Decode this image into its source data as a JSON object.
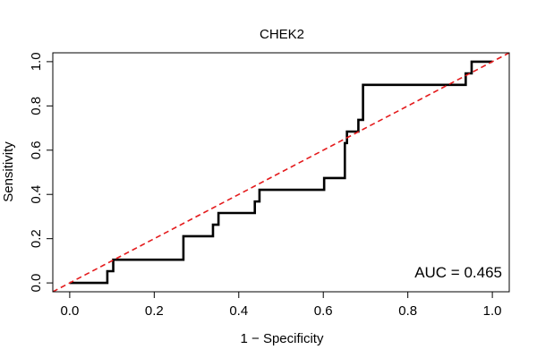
{
  "chart_data": {
    "type": "line",
    "title": "CHEK2",
    "xlabel": "1 − Specificity",
    "ylabel": "Sensitivity",
    "xlim": [
      -0.04,
      1.04
    ],
    "ylim": [
      -0.04,
      1.04
    ],
    "x_ticks": [
      0.0,
      0.2,
      0.4,
      0.6,
      0.8,
      1.0
    ],
    "x_tick_labels": [
      "0.0",
      "0.2",
      "0.4",
      "0.6",
      "0.8",
      "1.0"
    ],
    "y_ticks": [
      0.0,
      0.2,
      0.4,
      0.6,
      0.8,
      1.0
    ],
    "y_tick_labels": [
      "0.0",
      "0.2",
      "0.4",
      "0.6",
      "0.8",
      "1.0"
    ],
    "grid": false,
    "annotation": "AUC = 0.465",
    "colors": {
      "roc": "#000000",
      "reference": "#e41a1c"
    },
    "series": [
      {
        "style": "solid",
        "x": [
          0.0,
          0.089,
          0.089,
          0.103,
          0.103,
          0.269,
          0.269,
          0.339,
          0.339,
          0.352,
          0.352,
          0.438,
          0.438,
          0.449,
          0.449,
          0.602,
          0.602,
          0.651,
          0.651,
          0.656,
          0.656,
          0.665,
          0.665,
          0.683,
          0.683,
          0.694,
          0.694,
          0.937,
          0.937,
          0.951,
          0.951,
          1.0
        ],
        "y": [
          0.0,
          0.0,
          0.053,
          0.053,
          0.105,
          0.105,
          0.211,
          0.211,
          0.263,
          0.263,
          0.316,
          0.316,
          0.368,
          0.368,
          0.421,
          0.421,
          0.474,
          0.474,
          0.632,
          0.632,
          0.684,
          0.684,
          0.684,
          0.684,
          0.737,
          0.737,
          0.895,
          0.895,
          0.947,
          0.947,
          1.0,
          1.0
        ]
      },
      {
        "style": "dashed",
        "x": [
          -0.04,
          1.04
        ],
        "y": [
          -0.04,
          1.04
        ]
      }
    ]
  }
}
